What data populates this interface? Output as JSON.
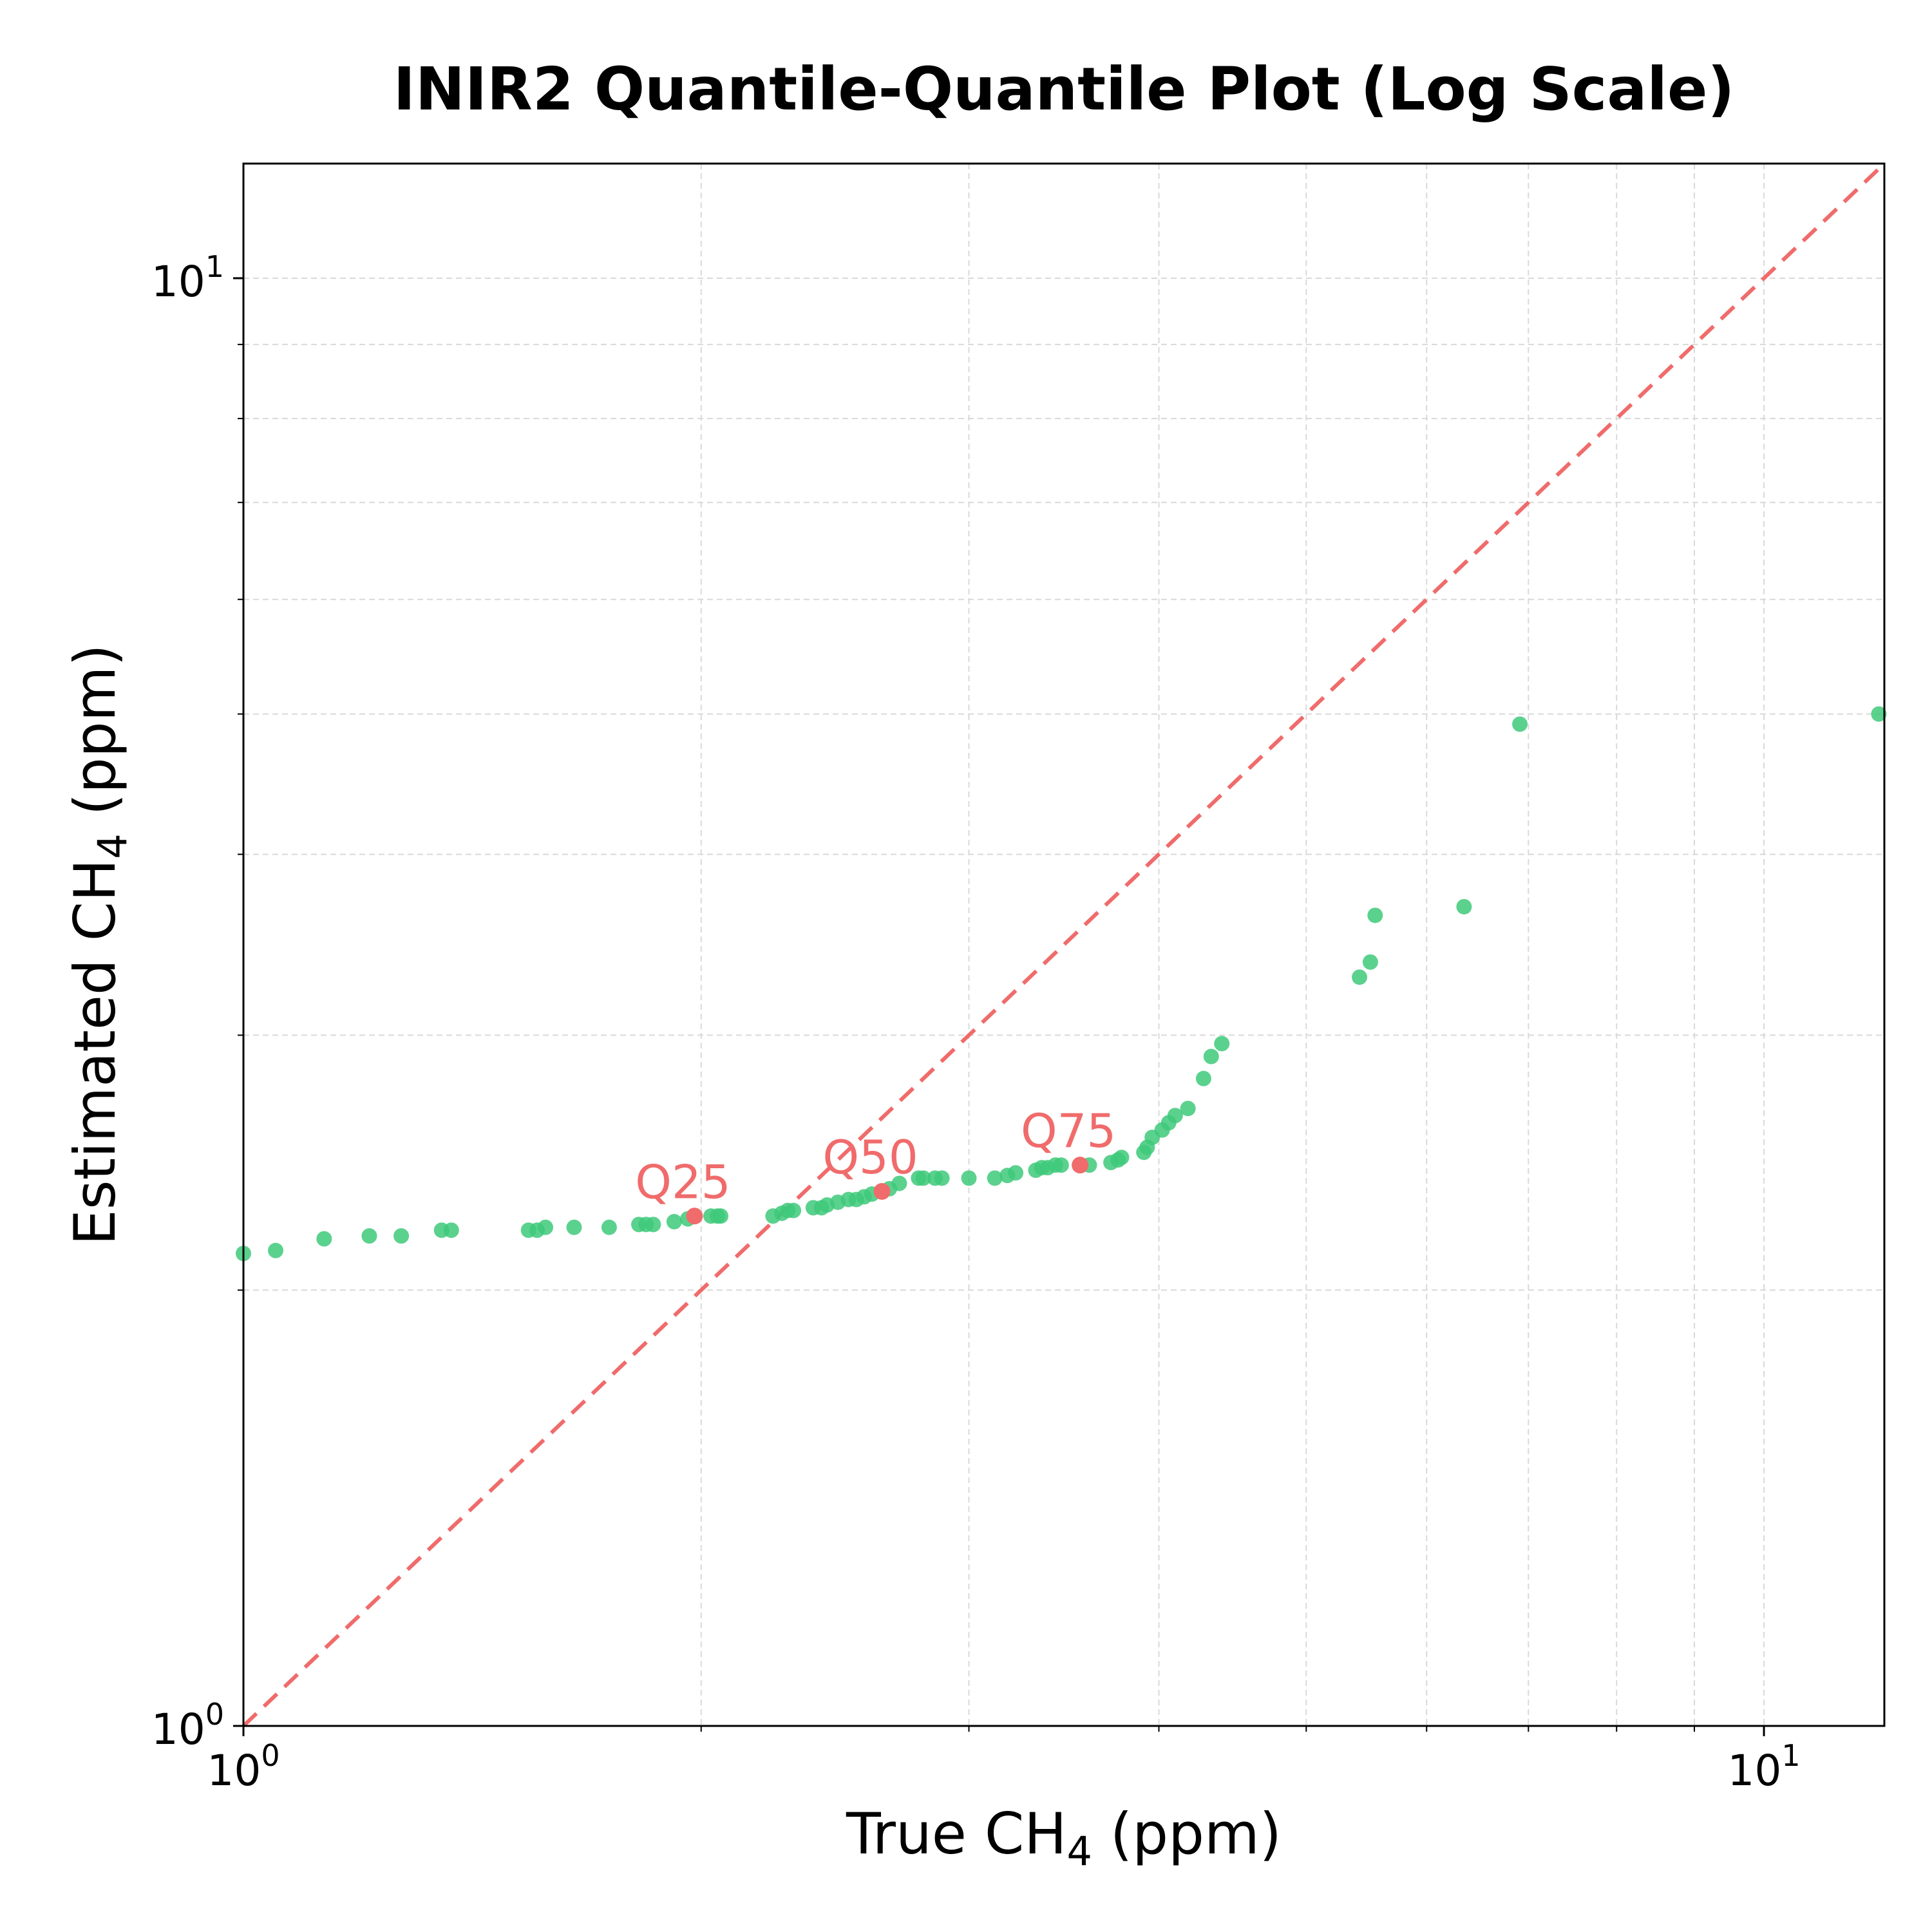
{
  "chart_data": {
    "type": "scatter",
    "title": "INIR2 Quantile-Quantile Plot (Log Scale)",
    "xlabel_main": "True CH",
    "xlabel_sub": "4",
    "xlabel_unit": " (ppm)",
    "ylabel_main": "Estimated CH",
    "ylabel_sub": "4",
    "ylabel_unit": " (ppm)",
    "x_scale": "log",
    "y_scale": "log",
    "xlim": [
      1.0,
      12.0
    ],
    "ylim": [
      1.0,
      12.0
    ],
    "grid": true,
    "x_ticks": [
      {
        "value": 1,
        "base": "10",
        "exp": "0"
      },
      {
        "value": 10,
        "base": "10",
        "exp": "1"
      }
    ],
    "y_ticks": [
      {
        "value": 1,
        "base": "10",
        "exp": "0"
      },
      {
        "value": 10,
        "base": "10",
        "exp": "1"
      }
    ],
    "colors": {
      "points": "#3ec97a",
      "reference": "#f06b6b",
      "quantiles": "#f06b6b",
      "grid": "#d9d9d9"
    },
    "reference_line": {
      "style": "dashed",
      "x": [
        1.0,
        12.0
      ],
      "y": [
        1.0,
        12.0
      ]
    },
    "quantile_markers": [
      {
        "label": "Q25",
        "x": 1.98,
        "y": 2.25
      },
      {
        "label": "Q50",
        "x": 2.63,
        "y": 2.34
      },
      {
        "label": "Q75",
        "x": 3.55,
        "y": 2.44
      }
    ],
    "series": [
      {
        "points": [
          [
            1.0,
            2.12
          ],
          [
            1.05,
            2.13
          ],
          [
            1.13,
            2.17
          ],
          [
            1.21,
            2.18
          ],
          [
            1.27,
            2.18
          ],
          [
            1.35,
            2.2
          ],
          [
            1.37,
            2.2
          ],
          [
            1.54,
            2.2
          ],
          [
            1.56,
            2.2
          ],
          [
            1.58,
            2.21
          ],
          [
            1.65,
            2.21
          ],
          [
            1.74,
            2.21
          ],
          [
            1.82,
            2.22
          ],
          [
            1.84,
            2.22
          ],
          [
            1.86,
            2.22
          ],
          [
            1.92,
            2.23
          ],
          [
            1.96,
            2.24
          ],
          [
            2.03,
            2.25
          ],
          [
            2.05,
            2.25
          ],
          [
            2.06,
            2.25
          ],
          [
            2.23,
            2.25
          ],
          [
            2.26,
            2.26
          ],
          [
            2.28,
            2.27
          ],
          [
            2.3,
            2.27
          ],
          [
            2.37,
            2.28
          ],
          [
            2.4,
            2.28
          ],
          [
            2.42,
            2.29
          ],
          [
            2.46,
            2.3
          ],
          [
            2.5,
            2.31
          ],
          [
            2.53,
            2.31
          ],
          [
            2.56,
            2.32
          ],
          [
            2.59,
            2.33
          ],
          [
            2.66,
            2.35
          ],
          [
            2.7,
            2.37
          ],
          [
            2.78,
            2.39
          ],
          [
            2.8,
            2.39
          ],
          [
            2.85,
            2.39
          ],
          [
            2.88,
            2.39
          ],
          [
            3.0,
            2.39
          ],
          [
            3.12,
            2.39
          ],
          [
            3.18,
            2.4
          ],
          [
            3.22,
            2.41
          ],
          [
            3.32,
            2.42
          ],
          [
            3.35,
            2.43
          ],
          [
            3.38,
            2.43
          ],
          [
            3.42,
            2.44
          ],
          [
            3.45,
            2.44
          ],
          [
            3.6,
            2.44
          ],
          [
            3.72,
            2.45
          ],
          [
            3.76,
            2.46
          ],
          [
            3.78,
            2.47
          ],
          [
            3.91,
            2.49
          ],
          [
            3.93,
            2.51
          ],
          [
            3.96,
            2.55
          ],
          [
            4.02,
            2.58
          ],
          [
            4.06,
            2.61
          ],
          [
            4.1,
            2.64
          ],
          [
            4.18,
            2.67
          ],
          [
            4.28,
            2.8
          ],
          [
            4.33,
            2.9
          ],
          [
            4.4,
            2.96
          ],
          [
            5.42,
            3.29
          ],
          [
            5.51,
            3.37
          ],
          [
            5.55,
            3.63
          ],
          [
            6.35,
            3.68
          ],
          [
            6.91,
            4.92
          ],
          [
            11.9,
            5.0
          ]
        ]
      }
    ]
  }
}
